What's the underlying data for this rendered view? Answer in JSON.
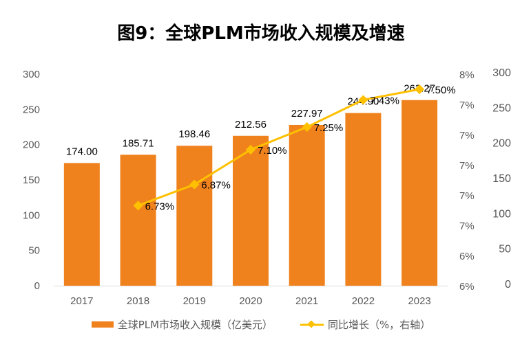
{
  "chart_data": {
    "type": "bar+line",
    "title": "图9：全球PLM市场收入规模及增速",
    "categories": [
      "2017",
      "2018",
      "2019",
      "2020",
      "2021",
      "2022",
      "2023"
    ],
    "series": [
      {
        "name": "全球PLM市场收入规模（亿美元）",
        "type": "bar",
        "axis": "left",
        "color": "#F0821E",
        "values": [
          174.0,
          185.71,
          198.46,
          212.56,
          227.97,
          244.9,
          263.27
        ],
        "labels": [
          "174.00",
          "185.71",
          "198.46",
          "212.56",
          "227.97",
          "244.90",
          "263.27"
        ]
      },
      {
        "name": "同比增长（%，右轴）",
        "type": "line",
        "axis": "right",
        "color": "#FFC000",
        "values": [
          null,
          6.73,
          6.87,
          7.1,
          7.25,
          7.43,
          7.5
        ],
        "labels": [
          null,
          "6.73%",
          "6.87%",
          "7.10%",
          "7.25%",
          "7.43%",
          "7.50%"
        ]
      }
    ],
    "left_axis": {
      "ylim": [
        0,
        300
      ],
      "ticks": [
        "0",
        "50",
        "100",
        "150",
        "200",
        "250",
        "300"
      ]
    },
    "right_pct_axis": {
      "ylim": [
        6.2,
        7.6
      ],
      "ticks": [
        "6%",
        "6%",
        "7%",
        "7%",
        "7%",
        "7%",
        "7%",
        "8%"
      ]
    },
    "right_num_axis": {
      "ylim": [
        0,
        300
      ],
      "ticks": [
        "0",
        "50",
        "100",
        "150",
        "200",
        "250",
        "300"
      ]
    },
    "grid": false,
    "legend": "bottom"
  }
}
